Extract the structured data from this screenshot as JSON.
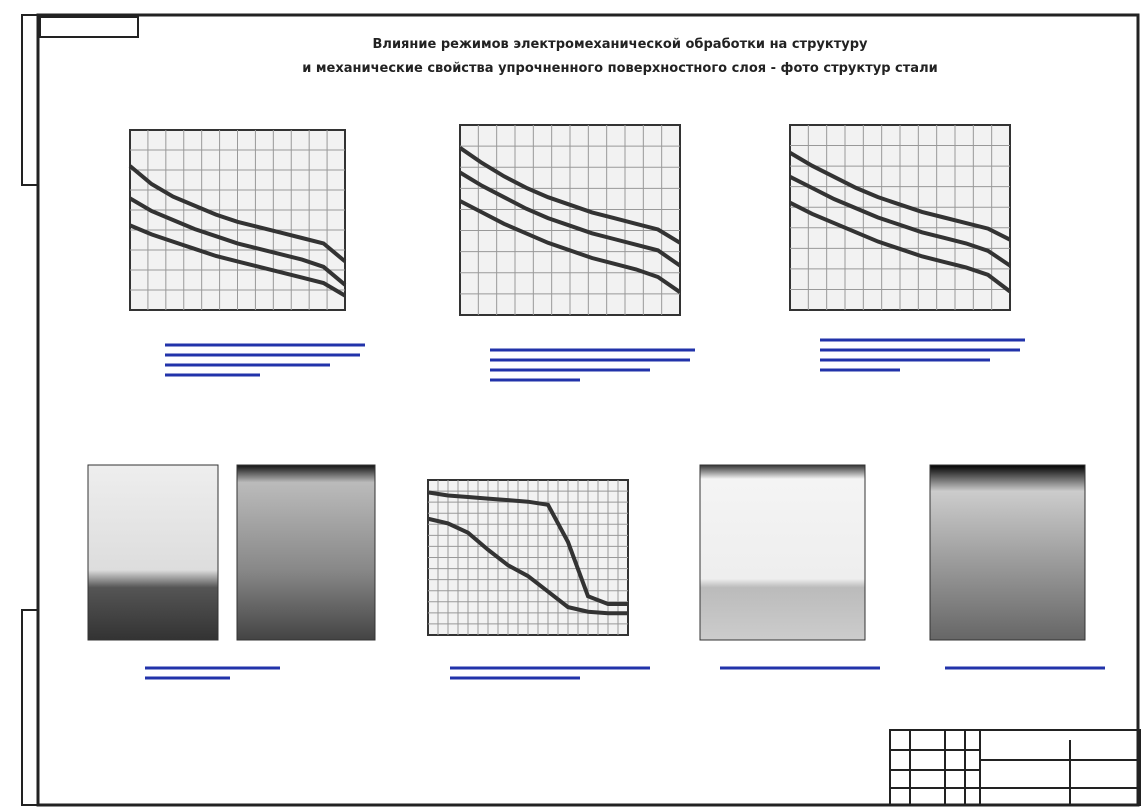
{
  "title": [
    "Влияние режимов электромеханической обработки на структуру",
    "и механические свойства упрочненного поверхностного слоя - фото структур стали"
  ],
  "chart_data": [
    {
      "type": "line",
      "x": [
        0,
        1,
        2,
        3,
        4,
        5,
        6,
        7,
        8,
        9,
        10
      ],
      "xlim": [
        0,
        10
      ],
      "ylim": [
        0,
        100
      ],
      "series": [
        {
          "color": "#333",
          "values": [
            80,
            70,
            63,
            58,
            53,
            49,
            46,
            43,
            40,
            37,
            27
          ]
        },
        {
          "color": "#333",
          "values": [
            62,
            55,
            50,
            45,
            41,
            37,
            34,
            31,
            28,
            24,
            14
          ]
        },
        {
          "color": "#333",
          "values": [
            47,
            42,
            38,
            34,
            30,
            27,
            24,
            21,
            18,
            15,
            8
          ]
        }
      ]
    },
    {
      "type": "line",
      "x": [
        0,
        1,
        2,
        3,
        4,
        5,
        6,
        7,
        8,
        9,
        10
      ],
      "xlim": [
        0,
        10
      ],
      "ylim": [
        0,
        100
      ],
      "series": [
        {
          "color": "#333",
          "values": [
            88,
            80,
            73,
            67,
            62,
            58,
            54,
            51,
            48,
            45,
            38
          ]
        },
        {
          "color": "#333",
          "values": [
            75,
            68,
            62,
            56,
            51,
            47,
            43,
            40,
            37,
            34,
            26
          ]
        },
        {
          "color": "#333",
          "values": [
            60,
            54,
            48,
            43,
            38,
            34,
            30,
            27,
            24,
            20,
            12
          ]
        }
      ]
    },
    {
      "type": "line",
      "x": [
        0,
        1,
        2,
        3,
        4,
        5,
        6,
        7,
        8,
        9,
        10
      ],
      "xlim": [
        0,
        10
      ],
      "ylim": [
        0,
        100
      ],
      "series": [
        {
          "color": "#333",
          "values": [
            85,
            78,
            72,
            66,
            61,
            57,
            53,
            50,
            47,
            44,
            38
          ]
        },
        {
          "color": "#333",
          "values": [
            72,
            66,
            60,
            55,
            50,
            46,
            42,
            39,
            36,
            32,
            24
          ]
        },
        {
          "color": "#333",
          "values": [
            58,
            52,
            47,
            42,
            37,
            33,
            29,
            26,
            23,
            19,
            10
          ]
        }
      ]
    },
    {
      "type": "line",
      "x": [
        0,
        1,
        2,
        3,
        4,
        5,
        6,
        7,
        8,
        9,
        10
      ],
      "xlim": [
        0,
        10
      ],
      "ylim": [
        0,
        100
      ],
      "series": [
        {
          "color": "#333",
          "values": [
            92,
            90,
            89,
            88,
            87,
            86,
            84,
            60,
            25,
            20,
            20
          ]
        },
        {
          "color": "#333",
          "values": [
            75,
            72,
            66,
            55,
            45,
            38,
            28,
            18,
            15,
            14,
            14
          ]
        }
      ]
    }
  ]
}
